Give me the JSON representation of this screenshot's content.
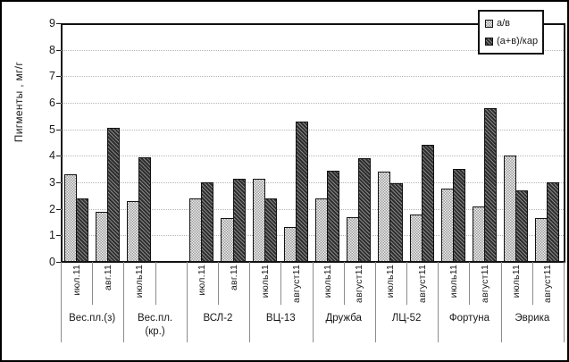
{
  "chart_data": {
    "type": "bar",
    "title": "",
    "ylabel": "Пигменты , мг/г",
    "xlabel": "",
    "ylim": [
      0,
      9
    ],
    "yticks": [
      0,
      1,
      2,
      3,
      4,
      5,
      6,
      7,
      8,
      9
    ],
    "grid": "horizontal-dotted",
    "legend_position": "top-right",
    "legend": [
      {
        "label": "а/в",
        "pattern": "light-checker-dots"
      },
      {
        "label": "(а+в)/кар",
        "pattern": "dark-diagonal-hatch"
      }
    ],
    "series_names": [
      "а/в",
      "(а+в)/кар"
    ],
    "groups": [
      {
        "label": "Вес.пл.(з)",
        "months": [
          {
            "label": "июл.11",
            "values": [
              3.3,
              2.4
            ]
          },
          {
            "label": "авг.11",
            "values": [
              1.9,
              5.05
            ]
          }
        ]
      },
      {
        "label": "Вес.пл.\n(кр.)",
        "months": [
          {
            "label": "июль11",
            "values": [
              2.3,
              3.95
            ]
          },
          {
            "label": "",
            "values": null
          }
        ]
      },
      {
        "label": "ВСЛ-2",
        "months": [
          {
            "label": "июл.11",
            "values": [
              2.4,
              3.0
            ]
          },
          {
            "label": "авг.11",
            "values": [
              1.65,
              3.15
            ]
          }
        ]
      },
      {
        "label": "ВЦ-13",
        "months": [
          {
            "label": "июль11",
            "values": [
              3.15,
              2.4
            ]
          },
          {
            "label": "август11",
            "values": [
              1.3,
              5.3
            ]
          }
        ]
      },
      {
        "label": "Дружба",
        "months": [
          {
            "label": "июль11",
            "values": [
              2.4,
              3.45
            ]
          },
          {
            "label": "август11",
            "values": [
              1.7,
              3.9
            ]
          }
        ]
      },
      {
        "label": "ЛЦ-52",
        "months": [
          {
            "label": "июль11",
            "values": [
              3.4,
              2.95
            ]
          },
          {
            "label": "август11",
            "values": [
              1.8,
              4.4
            ]
          }
        ]
      },
      {
        "label": "Фортуна",
        "months": [
          {
            "label": "июль11",
            "values": [
              2.75,
              3.5
            ]
          },
          {
            "label": "август11",
            "values": [
              2.1,
              5.8
            ]
          }
        ]
      },
      {
        "label": "Эврика",
        "months": [
          {
            "label": "июль11",
            "values": [
              4.0,
              2.7
            ]
          },
          {
            "label": "август11",
            "values": [
              1.65,
              3.0
            ]
          }
        ]
      }
    ],
    "colors": {
      "series_light_base": "#f0f0f0",
      "series_light_dots": "#9a9a9a",
      "series_dark": "#2e2e2e",
      "gridline": "#b5b5b5",
      "axis": "#111111",
      "text": "#1a1a1a"
    }
  }
}
